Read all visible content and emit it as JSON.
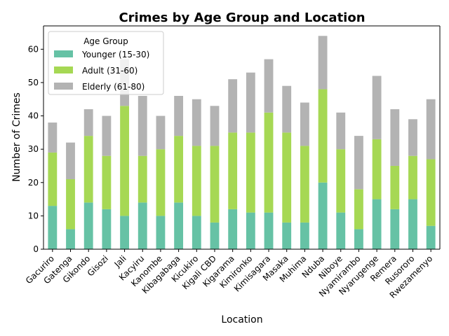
{
  "chart_data": {
    "type": "bar",
    "stacked": true,
    "title": "Crimes by Age Group and Location",
    "xlabel": "Location",
    "ylabel": "Number of Crimes",
    "ylim": [
      0,
      67
    ],
    "yticks": [
      0,
      10,
      20,
      30,
      40,
      50,
      60
    ],
    "grid": false,
    "legend": {
      "title": "Age Group",
      "placement": "top-left"
    },
    "categories": [
      "Gacuriro",
      "Gatenga",
      "Gikondo",
      "Gisozi",
      "Jali",
      "Kacyiru",
      "Kanombe",
      "Kibagabaga",
      "Kicukiro",
      "Kigali CBD",
      "Kigarama",
      "Kimironko",
      "Kimisagara",
      "Masaka",
      "Muhima",
      "Nduba",
      "Niboye",
      "Nyamirambo",
      "Nyarugenge",
      "Remera",
      "Rusororo",
      "Rwezamenyo"
    ],
    "series": [
      {
        "name": "Younger (15-30)",
        "color": "#66c2a5",
        "values": [
          13,
          6,
          14,
          12,
          10,
          14,
          10,
          14,
          10,
          8,
          12,
          11,
          11,
          8,
          8,
          20,
          11,
          6,
          15,
          12,
          15,
          7
        ]
      },
      {
        "name": "Adult (31-60)",
        "color": "#a6d854",
        "values": [
          16,
          15,
          20,
          16,
          33,
          14,
          20,
          20,
          21,
          23,
          23,
          24,
          30,
          27,
          23,
          28,
          19,
          12,
          18,
          13,
          13,
          20
        ]
      },
      {
        "name": "Elderly (61-80)",
        "color": "#b3b3b3",
        "values": [
          9,
          11,
          8,
          12,
          14,
          18,
          10,
          12,
          14,
          12,
          16,
          18,
          16,
          14,
          13,
          16,
          11,
          16,
          19,
          17,
          11,
          18
        ]
      }
    ]
  }
}
